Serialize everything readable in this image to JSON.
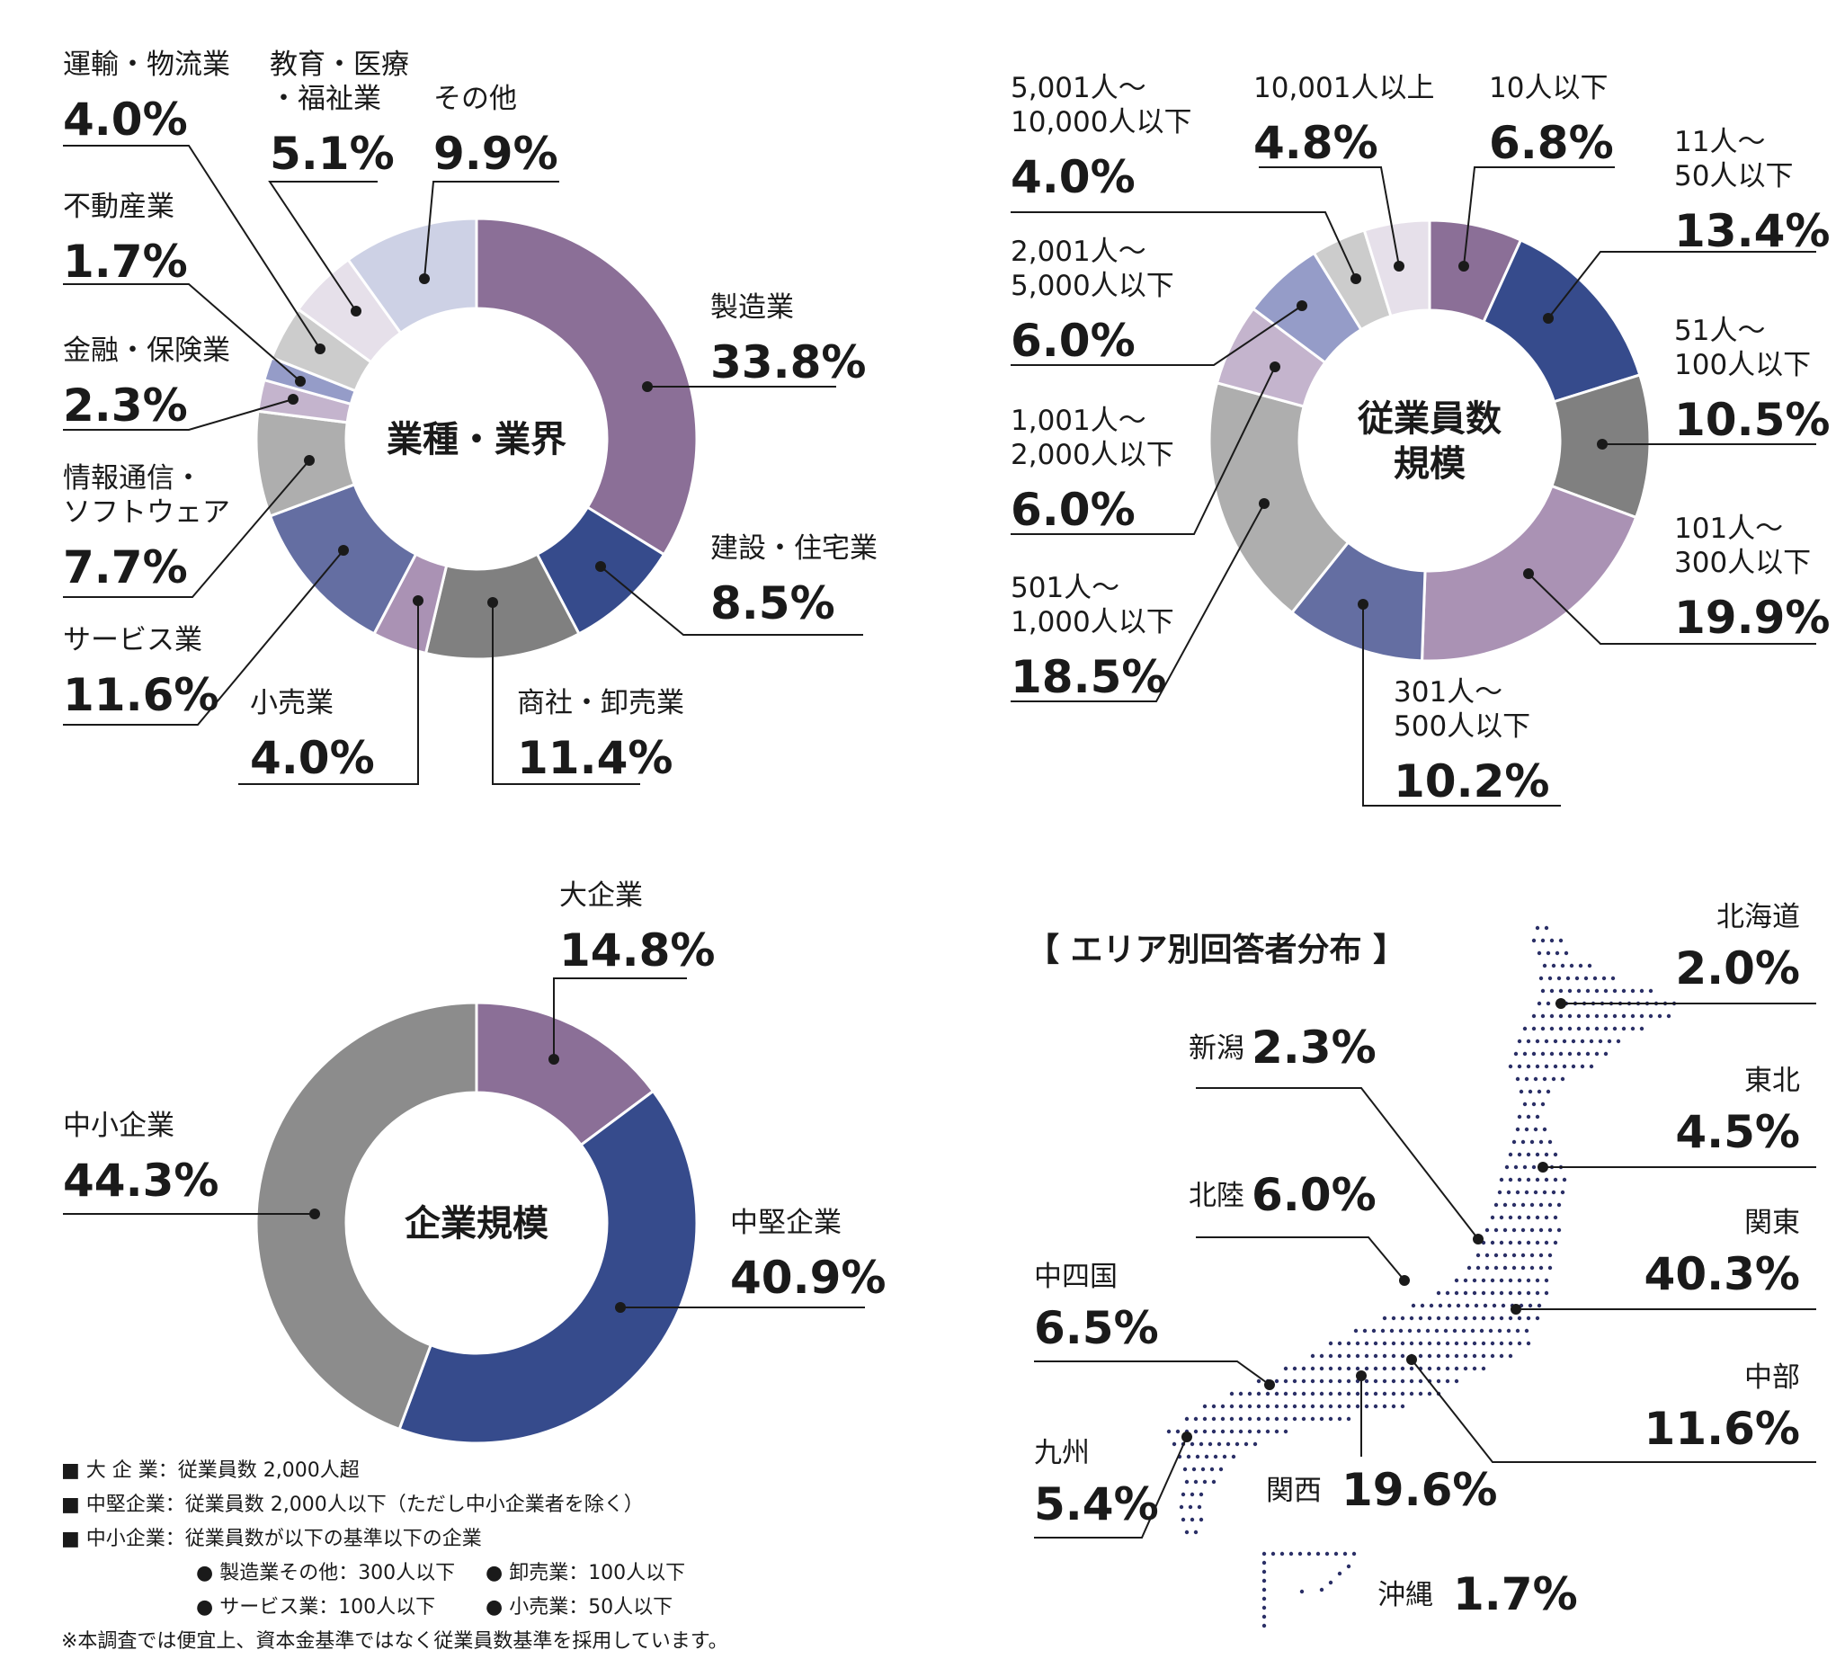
{
  "chart_data": [
    {
      "type": "pie",
      "title": "業種・業界",
      "unit": "%",
      "slices": [
        {
          "label": "製造業",
          "value": 33.8,
          "color": "#8b6f97"
        },
        {
          "label": "建設・住宅業",
          "value": 8.5,
          "color": "#364b8c"
        },
        {
          "label": "商社・卸売業",
          "value": 11.4,
          "color": "#808080"
        },
        {
          "label": "小売業",
          "value": 4.0,
          "color": "#aa92b4"
        },
        {
          "label": "サービス業",
          "value": 11.6,
          "color": "#646ea2"
        },
        {
          "label": "情報通信・ソフトウェア",
          "value": 7.7,
          "color": "#aeaeae"
        },
        {
          "label": "金融・保険業",
          "value": 2.3,
          "color": "#c4b4cd"
        },
        {
          "label": "不動産業",
          "value": 1.7,
          "color": "#959cc8"
        },
        {
          "label": "運輸・物流業",
          "value": 4.0,
          "color": "#cccccc"
        },
        {
          "label": "教育・医療・福祉業",
          "value": 5.1,
          "color": "#e6e0ea"
        },
        {
          "label": "その他",
          "value": 9.9,
          "color": "#cdd1e5"
        }
      ]
    },
    {
      "type": "pie",
      "title": "従業員数規模",
      "unit": "%",
      "slices": [
        {
          "label": "10人以下",
          "value": 6.8,
          "color": "#8b6f97"
        },
        {
          "label": "11人～50人以下",
          "value": 13.4,
          "color": "#364b8c"
        },
        {
          "label": "51人～100人以下",
          "value": 10.5,
          "color": "#808080"
        },
        {
          "label": "101人～300人以下",
          "value": 19.9,
          "color": "#aa92b4"
        },
        {
          "label": "301人～500人以下",
          "value": 10.2,
          "color": "#646ea2"
        },
        {
          "label": "501人～1,000人以下",
          "value": 18.5,
          "color": "#aeaeae"
        },
        {
          "label": "1,001人～2,000人以下",
          "value": 6.0,
          "color": "#c4b4cd"
        },
        {
          "label": "2,001人～5,000人以下",
          "value": 6.0,
          "color": "#959cc8"
        },
        {
          "label": "5,001人～10,000人以下",
          "value": 4.0,
          "color": "#cccccc"
        },
        {
          "label": "10,001人以上",
          "value": 4.8,
          "color": "#e6e0ea"
        }
      ]
    },
    {
      "type": "pie",
      "title": "企業規模",
      "unit": "%",
      "slices": [
        {
          "label": "大企業",
          "value": 14.8,
          "color": "#8b6f97"
        },
        {
          "label": "中堅企業",
          "value": 40.9,
          "color": "#364b8c"
        },
        {
          "label": "中小企業",
          "value": 44.3,
          "color": "#8c8c8c"
        }
      ]
    },
    {
      "type": "table",
      "title": "【 エリア別回答者分布 】",
      "unit": "%",
      "regions": [
        {
          "label": "北海道",
          "value": 2.0
        },
        {
          "label": "東北",
          "value": 4.5
        },
        {
          "label": "関東",
          "value": 40.3
        },
        {
          "label": "中部",
          "value": 11.6
        },
        {
          "label": "新潟",
          "value": 2.3
        },
        {
          "label": "北陸",
          "value": 6.0
        },
        {
          "label": "中四国",
          "value": 6.5
        },
        {
          "label": "九州",
          "value": 5.4
        },
        {
          "label": "関西",
          "value": 19.6
        },
        {
          "label": "沖縄",
          "value": 1.7
        }
      ]
    }
  ],
  "notes": {
    "large": "■ 大 企 業：従業員数 2,000人超",
    "mid": "■ 中堅企業：従業員数 2,000人以下（ただし中小企業者を除く）",
    "small": "■ 中小企業：従業員数が以下の基準以下の企業",
    "crit1a": "● 製造業その他：300人以下",
    "crit1b": "● 卸売業：100人以下",
    "crit2a": "● サービス業：100人以下",
    "crit2b": "● 小売業：50人以下",
    "footnote": "※本調査では便宜上、資本金基準ではなく従業員数基準を採用しています。"
  }
}
